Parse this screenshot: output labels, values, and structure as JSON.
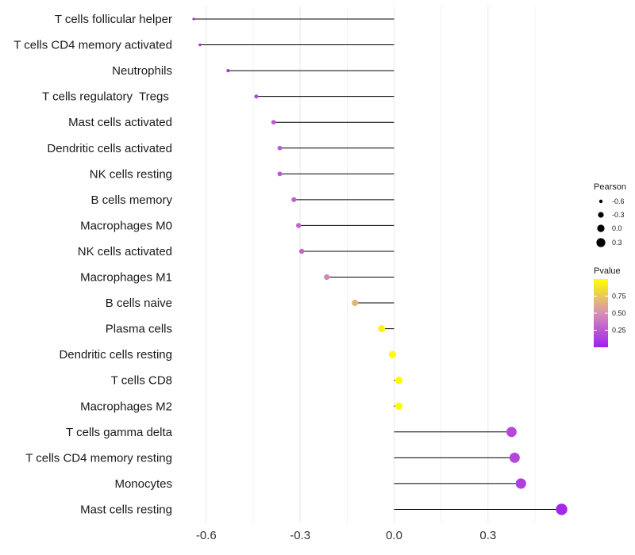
{
  "chart_data": {
    "type": "lollipop",
    "title": "",
    "xlabel": "",
    "ylabel": "",
    "xlim": [
      -0.72,
      0.58
    ],
    "xticks": [
      -0.6,
      -0.3,
      0.0,
      0.3
    ],
    "xtick_labels": [
      "-0.6",
      "-0.3",
      "0.0",
      "0.3"
    ],
    "grid": true,
    "categories": [
      "T cells follicular helper",
      "T cells CD4 memory activated",
      "Neutrophils",
      "T cells regulatory  Tregs ",
      "Mast cells activated",
      "Dendritic cells activated",
      "NK cells resting",
      "B cells memory",
      "Macrophages M0",
      "NK cells activated",
      "Macrophages M1",
      "B cells naive",
      "Plasma cells",
      "Dendritic cells resting",
      "T cells CD8",
      "Macrophages M2",
      "T cells gamma delta",
      "T cells CD4 memory resting",
      "Monocytes",
      "Mast cells resting"
    ],
    "pearson": [
      -0.64,
      -0.62,
      -0.53,
      -0.44,
      -0.385,
      -0.365,
      -0.365,
      -0.32,
      -0.305,
      -0.295,
      -0.215,
      -0.125,
      -0.04,
      -0.005,
      0.015,
      0.015,
      0.375,
      0.385,
      0.405,
      0.535
    ],
    "pvalue": [
      0.03,
      0.04,
      0.08,
      0.18,
      0.24,
      0.25,
      0.25,
      0.29,
      0.32,
      0.33,
      0.46,
      0.66,
      0.93,
      0.98,
      0.99,
      0.98,
      0.18,
      0.17,
      0.14,
      0.03
    ],
    "size_legend": {
      "title": "Pearson",
      "values": [
        -0.6,
        -0.3,
        0.0,
        0.3
      ],
      "labels": [
        "-0.6",
        "-0.3",
        "0.0",
        "0.3"
      ]
    },
    "color_legend": {
      "title": "Pvalue",
      "ticks": [
        0.75,
        0.5,
        0.25
      ],
      "tick_labels": [
        "0.75",
        "0.50",
        "0.25"
      ],
      "range": [
        0.0,
        1.0
      ],
      "low_color": "#A020F0",
      "mid_color": "#D88FB4",
      "high_color": "#FFFF00"
    },
    "colors": {
      "stem": "#000000",
      "grid": "#ebebeb"
    }
  }
}
